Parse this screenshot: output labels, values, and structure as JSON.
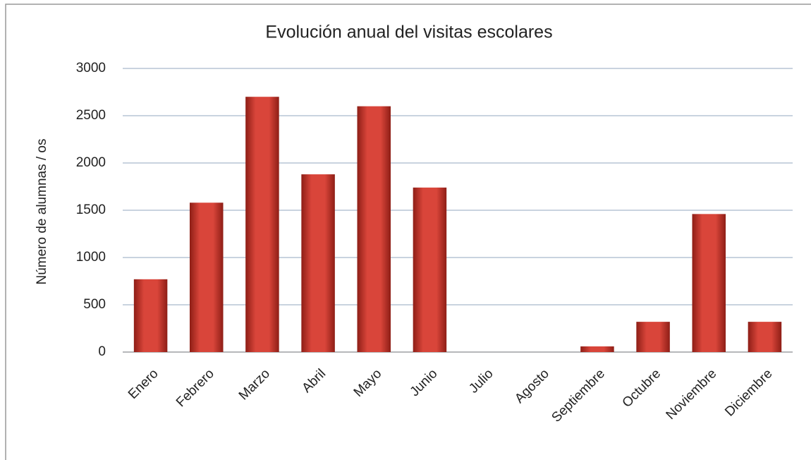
{
  "chart_data": {
    "type": "bar",
    "title": "Evolución anual del visitas escolares",
    "y_label": "Número de alumnas / os",
    "categories": [
      "Enero",
      "Febrero",
      "Marzo",
      "Abril",
      "Mayo",
      "Junio",
      "Julio",
      "Agosto",
      "Septiembre",
      "Octubre",
      "Noviembre",
      "Diciembre"
    ],
    "values": [
      770,
      1580,
      2700,
      1880,
      2600,
      1740,
      0,
      0,
      60,
      320,
      1460,
      320
    ],
    "color": "#d9453a",
    "ylim": [
      0,
      3000
    ],
    "yticks": [
      0,
      500,
      1000,
      1500,
      2000,
      2500,
      3000
    ],
    "grid": true
  }
}
